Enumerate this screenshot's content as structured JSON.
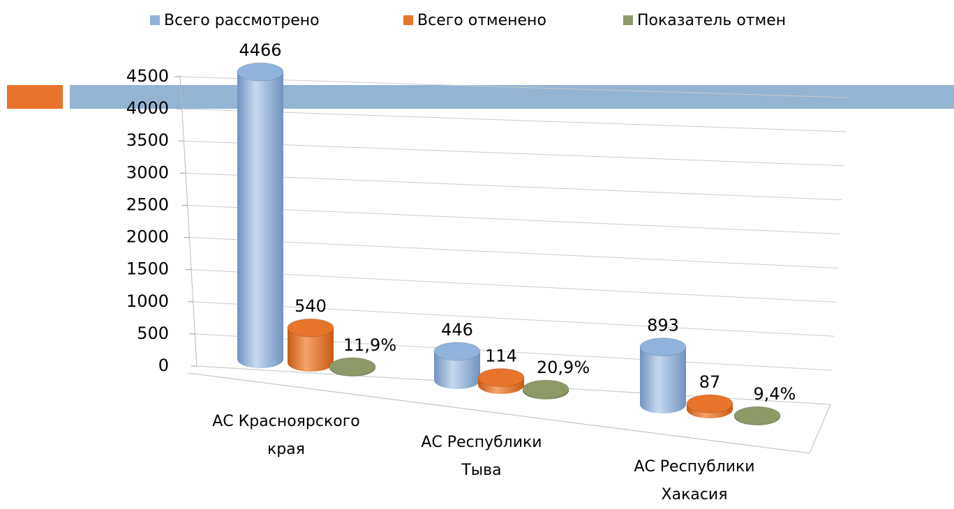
{
  "chart_data": {
    "type": "bar3d",
    "categories": [
      "АС Красноярского края",
      "АС Республики Тыва",
      "АС Республики Хакасия"
    ],
    "series": [
      {
        "name": "Всего рассмотрено",
        "color": "#8fb3dc",
        "values": [
          4466,
          446,
          893
        ]
      },
      {
        "name": "Всего отменено",
        "color": "#e8732a",
        "values": [
          540,
          114,
          87
        ]
      },
      {
        "name": "Показатель отмен",
        "color": "#8d9a68",
        "values": [
          11.9,
          20.9,
          9.4
        ],
        "value_labels": [
          "11,9%",
          "20,9%",
          "9,4%"
        ]
      }
    ],
    "ylim": [
      0,
      4500
    ],
    "yticks": [
      0,
      500,
      1000,
      1500,
      2000,
      2500,
      3000,
      3500,
      4000,
      4500
    ],
    "grid": true,
    "legend": "top"
  }
}
